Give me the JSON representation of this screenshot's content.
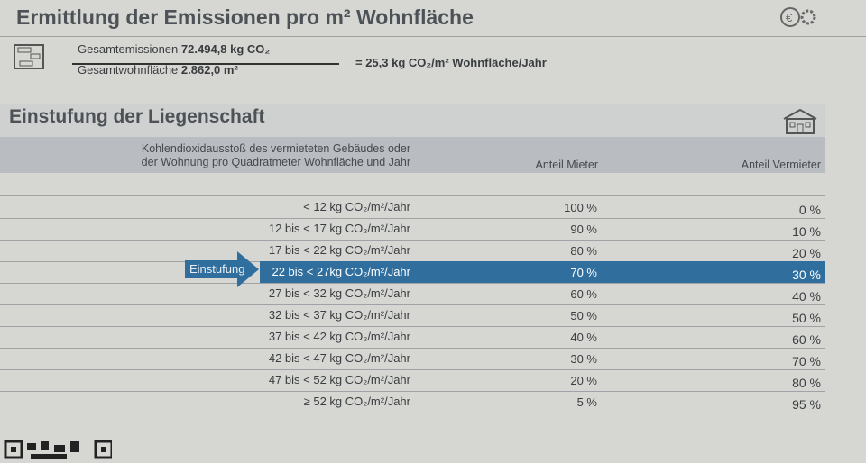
{
  "emissions": {
    "title": "Ermittlung der Emissionen pro m² Wohnfläche",
    "numerator_label": "Gesamtemissionen",
    "numerator_value": "72.494,8 kg CO₂",
    "denominator_label": "Gesamtwohnfläche",
    "denominator_value": "2.862,0 m²",
    "result": "= 25,3 kg CO₂/m² Wohnfläche/Jahr",
    "icons": [
      "calculator-icon",
      "euro-gear-icon"
    ]
  },
  "classification": {
    "title": "Einstufung der Liegenschaft",
    "icon": "house-icon",
    "header": {
      "col1_line1": "Kohlendioxidausstoß des vermieteten Gebäudes oder",
      "col1_line2": "der Wohnung pro Quadratmeter Wohnfläche und Jahr",
      "col2": "Anteil Mieter",
      "col3": "Anteil Vermieter"
    },
    "marker_label": "Einstufung",
    "highlight_color": "#2f6e9d",
    "selected_index": 3,
    "rows": [
      {
        "range": "< 12 kg CO₂/m²/Jahr",
        "mieter": "100 %",
        "vermieter": "0 %"
      },
      {
        "range": "12 bis < 17 kg CO₂/m²/Jahr",
        "mieter": "90 %",
        "vermieter": "10 %"
      },
      {
        "range": "17 bis < 22 kg CO₂/m²/Jahr",
        "mieter": "80 %",
        "vermieter": "20 %"
      },
      {
        "range": "22 bis < 27kg CO₂/m²/Jahr",
        "mieter": "70 %",
        "vermieter": "30 %"
      },
      {
        "range": "27 bis < 32 kg CO₂/m²/Jahr",
        "mieter": "60 %",
        "vermieter": "40 %"
      },
      {
        "range": "32 bis < 37 kg CO₂/m²/Jahr",
        "mieter": "50 %",
        "vermieter": "50 %"
      },
      {
        "range": "37 bis < 42 kg CO₂/m²/Jahr",
        "mieter": "40 %",
        "vermieter": "60 %"
      },
      {
        "range": "42 bis < 47 kg CO₂/m²/Jahr",
        "mieter": "30 %",
        "vermieter": "70 %"
      },
      {
        "range": "47 bis < 52 kg CO₂/m²/Jahr",
        "mieter": "20 %",
        "vermieter": "80 %"
      },
      {
        "range": "≥ 52 kg CO₂/m²/Jahr",
        "mieter": "5 %",
        "vermieter": "95 %"
      }
    ]
  }
}
